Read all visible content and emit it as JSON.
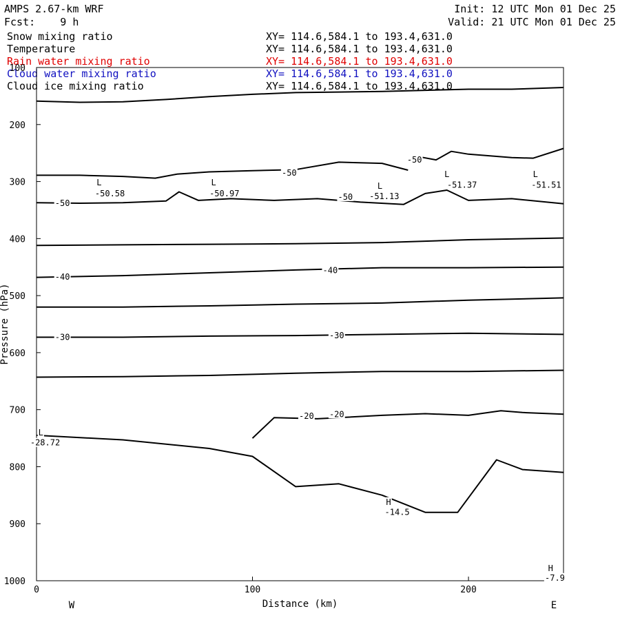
{
  "header": {
    "model": "AMPS 2.67-km WRF",
    "fcst": "Fcst:    9 h",
    "init": "Init: 12 UTC Mon 01 Dec 25",
    "valid": "Valid: 21 UTC Mon 01 Dec 25"
  },
  "fields": [
    {
      "name": "Snow mixing ratio",
      "xy": "XY= 114.6,584.1 to 193.4,631.0",
      "color": "#000000"
    },
    {
      "name": "Temperature",
      "xy": "XY= 114.6,584.1 to 193.4,631.0",
      "color": "#000000"
    },
    {
      "name": "Rain water mixing ratio",
      "xy": "XY= 114.6,584.1 to 193.4,631.0",
      "color": "#e00000"
    },
    {
      "name": "Cloud water mixing ratio",
      "xy": "XY= 114.6,584.1 to 193.4,631.0",
      "color": "#1010c0"
    },
    {
      "name": "Cloud ice mixing ratio",
      "xy": "XY= 114.6,584.1 to 193.4,631.0",
      "color": "#000000"
    }
  ],
  "chart_data": {
    "type": "line",
    "xlabel": "Distance (km)",
    "ylabel": "Pressure (hPa)",
    "xlim": [
      0,
      244
    ],
    "ylim": [
      100,
      1000
    ],
    "xticks": [
      0,
      100,
      200
    ],
    "yticks": [
      100,
      200,
      300,
      400,
      500,
      600,
      700,
      800,
      900,
      1000
    ],
    "y_scale": "inverted",
    "grid": false,
    "orientation_labels": {
      "left": "W",
      "right": "E"
    },
    "series": [
      {
        "x": [
          0,
          20,
          40,
          60,
          80,
          100,
          120,
          140,
          160,
          180,
          200,
          220,
          244
        ],
        "y": [
          159,
          161,
          160,
          156,
          151,
          147,
          144,
          143,
          142,
          140,
          138,
          138,
          135
        ]
      },
      {
        "x": [
          0,
          20,
          40,
          55,
          65,
          80,
          100,
          120,
          140,
          160,
          172
        ],
        "y": [
          289,
          289,
          291,
          294,
          287,
          283,
          281,
          279,
          266,
          268,
          280
        ]
      },
      {
        "x": [
          175,
          185,
          192,
          200,
          210,
          220,
          230,
          244
        ],
        "y": [
          255,
          262,
          247,
          252,
          255,
          258,
          259,
          242
        ]
      },
      {
        "x": [
          0,
          20,
          40,
          60,
          66,
          75,
          90,
          110,
          130,
          150,
          170,
          180,
          190,
          200,
          220,
          244
        ],
        "y": [
          337,
          338,
          337,
          334,
          318,
          333,
          330,
          333,
          330,
          336,
          340,
          321,
          315,
          333,
          330,
          339
        ]
      },
      {
        "x": [
          0,
          40,
          80,
          120,
          160,
          200,
          244
        ],
        "y": [
          412,
          411,
          410,
          409,
          407,
          402,
          399
        ]
      },
      {
        "x": [
          0,
          40,
          80,
          120,
          160,
          200,
          244
        ],
        "y": [
          468,
          465,
          460,
          455,
          451,
          451,
          450
        ]
      },
      {
        "x": [
          0,
          40,
          80,
          120,
          160,
          200,
          244
        ],
        "y": [
          520,
          520,
          518,
          515,
          513,
          508,
          504
        ]
      },
      {
        "x": [
          0,
          40,
          80,
          120,
          160,
          200,
          244
        ],
        "y": [
          573,
          573,
          571,
          570,
          568,
          566,
          568
        ]
      },
      {
        "x": [
          0,
          40,
          80,
          120,
          160,
          200,
          244
        ],
        "y": [
          643,
          642,
          640,
          636,
          633,
          633,
          631
        ]
      },
      {
        "x": [
          100,
          110,
          130,
          160,
          180,
          200,
          215,
          225,
          244
        ],
        "y": [
          750,
          714,
          716,
          710,
          707,
          710,
          702,
          705,
          708
        ]
      },
      {
        "x": [
          0,
          40,
          80,
          100,
          120,
          140,
          160,
          180,
          195,
          213,
          225,
          244
        ],
        "y": [
          745,
          753,
          768,
          782,
          835,
          830,
          850,
          880,
          880,
          788,
          805,
          810
        ]
      }
    ],
    "annotations": [
      {
        "text": "-50",
        "x": 117,
        "y": 285
      },
      {
        "text": "-50",
        "x": 143,
        "y": 327
      },
      {
        "text": "-50",
        "x": 12,
        "y": 338
      },
      {
        "text": "-50",
        "x": 175,
        "y": 262
      },
      {
        "text": "-40",
        "x": 12,
        "y": 467
      },
      {
        "text": "-40",
        "x": 136,
        "y": 456
      },
      {
        "text": "-30",
        "x": 12,
        "y": 573
      },
      {
        "text": "-30",
        "x": 139,
        "y": 570
      },
      {
        "text": "-20",
        "x": 125,
        "y": 711
      },
      {
        "text": "-20",
        "x": 139,
        "y": 708
      },
      {
        "text": "L",
        "x": 29,
        "y": 302
      },
      {
        "text": "-50.58",
        "x": 34,
        "y": 321
      },
      {
        "text": "L",
        "x": 82,
        "y": 302
      },
      {
        "text": "-50.97",
        "x": 87,
        "y": 321
      },
      {
        "text": "L",
        "x": 159,
        "y": 308
      },
      {
        "text": "-51.13",
        "x": 161,
        "y": 326
      },
      {
        "text": "L",
        "x": 190,
        "y": 287
      },
      {
        "text": "-51.37",
        "x": 197,
        "y": 306
      },
      {
        "text": "L",
        "x": 231,
        "y": 287
      },
      {
        "text": "-51.51",
        "x": 236,
        "y": 306
      },
      {
        "text": "L",
        "x": 2,
        "y": 740
      },
      {
        "text": "-28.72",
        "x": 4,
        "y": 758
      },
      {
        "text": "H",
        "x": 163,
        "y": 862
      },
      {
        "text": "-14.5",
        "x": 167,
        "y": 880
      },
      {
        "text": "H",
        "x": 238,
        "y": 978
      },
      {
        "text": "-7.9",
        "x": 240,
        "y": 995
      }
    ]
  }
}
